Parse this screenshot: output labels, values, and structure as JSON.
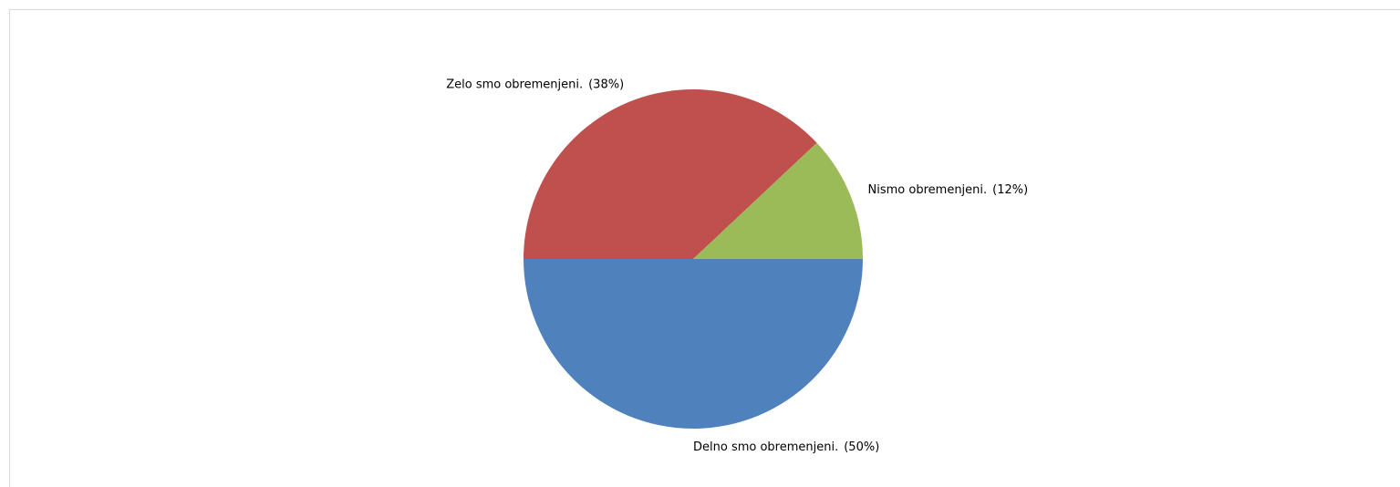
{
  "chart_data": {
    "type": "pie",
    "categories": [
      "Delno smo obremenjeni.",
      "Zelo smo obremenjeni.",
      "Nismo obremenjeni."
    ],
    "values": [
      50,
      38,
      12
    ],
    "value_labels": [
      "(50%)",
      "(38%)",
      "(12%)"
    ],
    "colors": [
      "#4f81bd",
      "#c0504d",
      "#9bbb59"
    ]
  }
}
